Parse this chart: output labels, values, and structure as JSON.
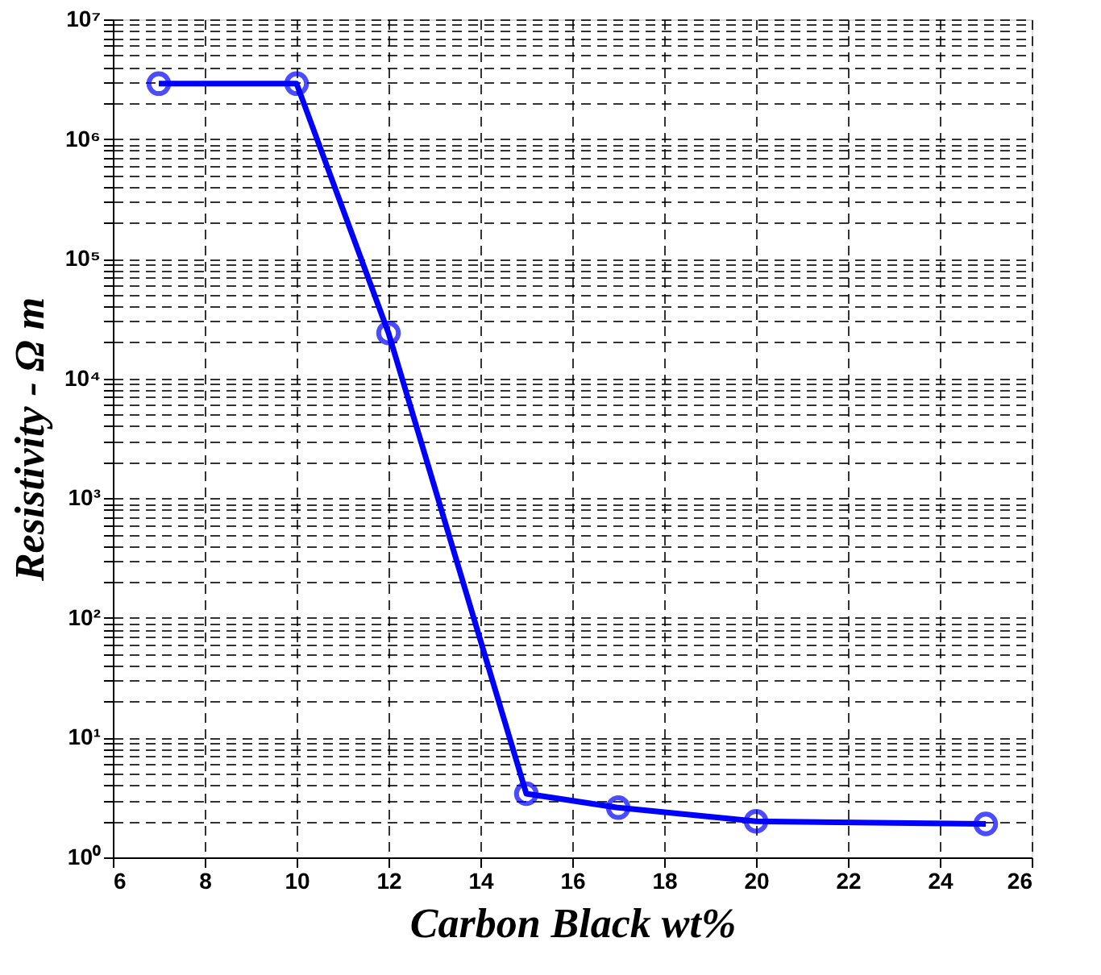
{
  "chart_data": {
    "type": "line",
    "xlabel": "Carbon Black wt%",
    "ylabel": "Resistivity - Ω m",
    "x": [
      7,
      10,
      12,
      15,
      17,
      20,
      25
    ],
    "series": [
      {
        "color": "#0000ff",
        "values": [
          2900000,
          2900000,
          24000,
          3.4,
          2.6,
          2.0,
          1.9
        ]
      }
    ],
    "xlim": [
      6,
      26
    ],
    "xticks": [
      6,
      8,
      10,
      12,
      14,
      16,
      18,
      20,
      22,
      24,
      26
    ],
    "ylim": [
      1,
      10000000
    ],
    "yticks": [
      {
        "value": 1,
        "label": "10⁰"
      },
      {
        "value": 2,
        "label": null
      },
      {
        "value": 3,
        "label": null
      },
      {
        "value": 4,
        "label": null
      },
      {
        "value": 5,
        "label": null
      },
      {
        "value": 6,
        "label": null
      },
      {
        "value": 7,
        "label": null
      },
      {
        "value": 8,
        "label": null
      },
      {
        "value": 9,
        "label": null
      },
      {
        "value": 10,
        "label": "10¹"
      },
      {
        "value": 20,
        "label": null
      },
      {
        "value": 30,
        "label": null
      },
      {
        "value": 40,
        "label": null
      },
      {
        "value": 50,
        "label": null
      },
      {
        "value": 60,
        "label": null
      },
      {
        "value": 70,
        "label": null
      },
      {
        "value": 80,
        "label": null
      },
      {
        "value": 90,
        "label": null
      },
      {
        "value": 100,
        "label": "10²"
      },
      {
        "value": 200,
        "label": null
      },
      {
        "value": 300,
        "label": null
      },
      {
        "value": 400,
        "label": null
      },
      {
        "value": 500,
        "label": null
      },
      {
        "value": 600,
        "label": null
      },
      {
        "value": 700,
        "label": null
      },
      {
        "value": 800,
        "label": null
      },
      {
        "value": 900,
        "label": null
      },
      {
        "value": 1000,
        "label": "10³"
      },
      {
        "value": 2000,
        "label": null
      },
      {
        "value": 3000,
        "label": null
      },
      {
        "value": 4000,
        "label": null
      },
      {
        "value": 5000,
        "label": null
      },
      {
        "value": 6000,
        "label": null
      },
      {
        "value": 7000,
        "label": null
      },
      {
        "value": 8000,
        "label": null
      },
      {
        "value": 9000,
        "label": null
      },
      {
        "value": 10000,
        "label": "10⁴"
      },
      {
        "value": 20000,
        "label": null
      },
      {
        "value": 30000,
        "label": null
      },
      {
        "value": 40000,
        "label": null
      },
      {
        "value": 50000,
        "label": null
      },
      {
        "value": 60000,
        "label": null
      },
      {
        "value": 70000,
        "label": null
      },
      {
        "value": 80000,
        "label": null
      },
      {
        "value": 90000,
        "label": null
      },
      {
        "value": 100000,
        "label": "10⁵"
      },
      {
        "value": 200000,
        "label": null
      },
      {
        "value": 300000,
        "label": null
      },
      {
        "value": 400000,
        "label": null
      },
      {
        "value": 500000,
        "label": null
      },
      {
        "value": 600000,
        "label": null
      },
      {
        "value": 700000,
        "label": null
      },
      {
        "value": 800000,
        "label": null
      },
      {
        "value": 900000,
        "label": null
      },
      {
        "value": 1000000,
        "label": "10⁶"
      },
      {
        "value": 2000000,
        "label": null
      },
      {
        "value": 3000000,
        "label": null
      },
      {
        "value": 4000000,
        "label": null
      },
      {
        "value": 5000000,
        "label": null
      },
      {
        "value": 6000000,
        "label": null
      },
      {
        "value": 7000000,
        "label": null
      },
      {
        "value": 8000000,
        "label": null
      },
      {
        "value": 9000000,
        "label": null
      },
      {
        "value": 10000000,
        "label": "10⁷"
      }
    ],
    "log": "y",
    "grid": true,
    "marker": "circle",
    "line_style": "solid",
    "legend": false
  }
}
